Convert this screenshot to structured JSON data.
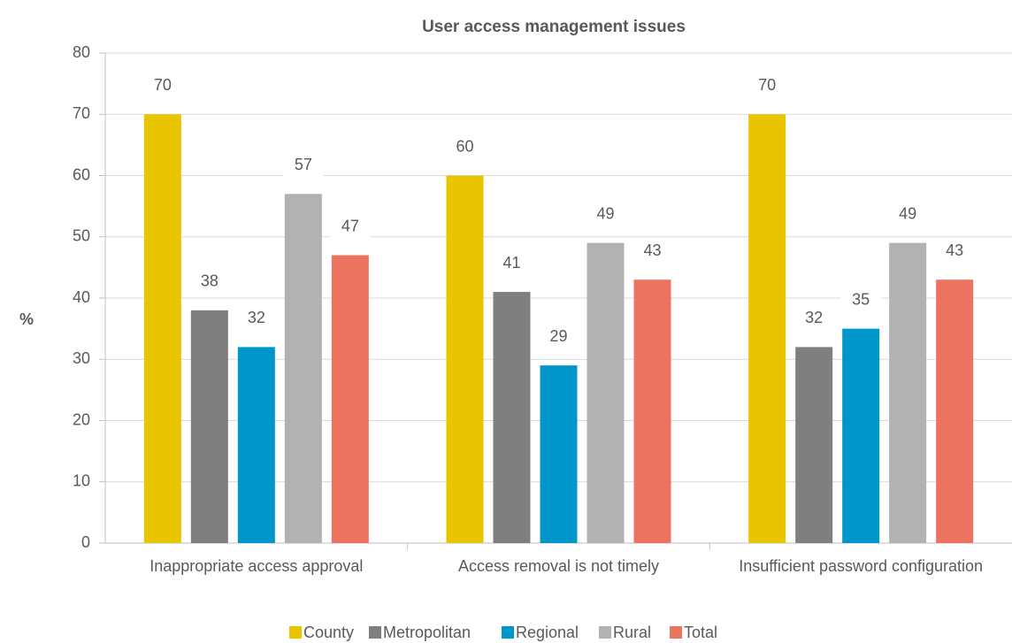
{
  "chart_data": {
    "type": "bar",
    "title": "User access management issues",
    "y_label": "%",
    "categories": [
      "Inappropriate access approval",
      "Access removal is not timely",
      "Insufficient password configuration"
    ],
    "series": [
      {
        "name": "County",
        "color": "#E9C500",
        "values": [
          70,
          60,
          70
        ]
      },
      {
        "name": "Metropolitan",
        "color": "#7F7F7F",
        "values": [
          38,
          41,
          32
        ]
      },
      {
        "name": "Regional",
        "color": "#0096CA",
        "values": [
          32,
          29,
          35
        ]
      },
      {
        "name": "Rural",
        "color": "#B2B2B2",
        "values": [
          57,
          49,
          49
        ]
      },
      {
        "name": "Total",
        "color": "#EC735F",
        "values": [
          47,
          43,
          43
        ]
      }
    ],
    "ylim": [
      0,
      80
    ],
    "yticks": [
      0,
      10,
      20,
      30,
      40,
      50,
      60,
      70,
      80
    ],
    "grid": true,
    "legend": "bottom"
  }
}
